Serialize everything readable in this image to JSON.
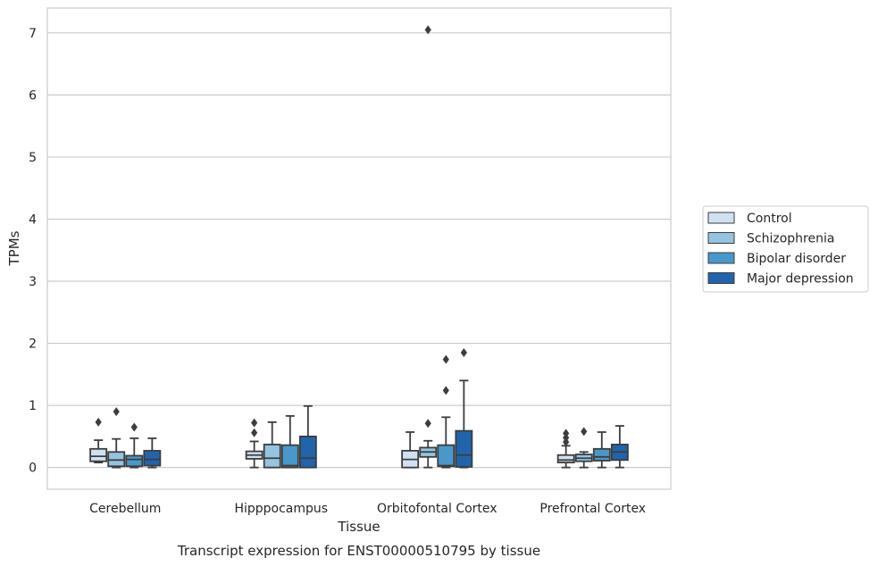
{
  "chart_data": {
    "type": "box",
    "caption": "Transcript expression for ENST00000510795 by tissue",
    "xlabel": "Tissue",
    "ylabel": "TPMs",
    "ylim": [
      -0.35,
      7.4
    ],
    "yticks": [
      0,
      1,
      2,
      3,
      4,
      5,
      6,
      7
    ],
    "grid": true,
    "legend_placement": "right",
    "categories": [
      "Cerebellum",
      "Hipppocampus",
      "Orbitofontal Cortex",
      "Prefrontal Cortex"
    ],
    "series": [
      {
        "name": "Control",
        "color": "#d0e1f2",
        "boxes": [
          {
            "whislo": 0.08,
            "q1": 0.1,
            "med": 0.18,
            "q3": 0.3,
            "whishi": 0.44,
            "fliers": [
              0.73
            ]
          },
          {
            "whislo": 0.0,
            "q1": 0.14,
            "med": 0.2,
            "q3": 0.26,
            "whishi": 0.42,
            "fliers": [
              0.56,
              0.72
            ]
          },
          {
            "whislo": 0.0,
            "q1": 0.0,
            "med": 0.13,
            "q3": 0.27,
            "whishi": 0.57,
            "fliers": []
          },
          {
            "whislo": 0.0,
            "q1": 0.08,
            "med": 0.12,
            "q3": 0.2,
            "whishi": 0.35,
            "fliers": [
              0.41,
              0.48,
              0.55
            ]
          }
        ]
      },
      {
        "name": "Schizophrenia",
        "color": "#94c4df",
        "boxes": [
          {
            "whislo": 0.0,
            "q1": 0.02,
            "med": 0.12,
            "q3": 0.25,
            "whishi": 0.46,
            "fliers": [
              0.9
            ]
          },
          {
            "whislo": 0.0,
            "q1": 0.0,
            "med": 0.15,
            "q3": 0.37,
            "whishi": 0.73,
            "fliers": []
          },
          {
            "whislo": 0.0,
            "q1": 0.17,
            "med": 0.25,
            "q3": 0.32,
            "whishi": 0.43,
            "fliers": [
              0.71,
              7.05
            ]
          },
          {
            "whislo": 0.0,
            "q1": 0.1,
            "med": 0.15,
            "q3": 0.21,
            "whishi": 0.25,
            "fliers": [
              0.58
            ]
          }
        ]
      },
      {
        "name": "Bipolar disorder",
        "color": "#4a98c9",
        "boxes": [
          {
            "whislo": 0.0,
            "q1": 0.02,
            "med": 0.13,
            "q3": 0.19,
            "whishi": 0.47,
            "fliers": [
              0.65
            ]
          },
          {
            "whislo": 0.0,
            "q1": 0.0,
            "med": 0.03,
            "q3": 0.36,
            "whishi": 0.83,
            "fliers": []
          },
          {
            "whislo": 0.0,
            "q1": 0.02,
            "med": 0.03,
            "q3": 0.36,
            "whishi": 0.81,
            "fliers": [
              1.24,
              1.74
            ]
          },
          {
            "whislo": 0.0,
            "q1": 0.11,
            "med": 0.17,
            "q3": 0.3,
            "whishi": 0.57,
            "fliers": []
          }
        ]
      },
      {
        "name": "Major depression",
        "color": "#2164ab",
        "boxes": [
          {
            "whislo": 0.0,
            "q1": 0.03,
            "med": 0.13,
            "q3": 0.27,
            "whishi": 0.47,
            "fliers": []
          },
          {
            "whislo": 0.0,
            "q1": 0.0,
            "med": 0.15,
            "q3": 0.5,
            "whishi": 0.99,
            "fliers": []
          },
          {
            "whislo": 0.0,
            "q1": 0.01,
            "med": 0.2,
            "q3": 0.59,
            "whishi": 1.4,
            "fliers": [
              1.85
            ]
          },
          {
            "whislo": 0.0,
            "q1": 0.12,
            "med": 0.25,
            "q3": 0.37,
            "whishi": 0.67,
            "fliers": []
          }
        ]
      }
    ]
  }
}
